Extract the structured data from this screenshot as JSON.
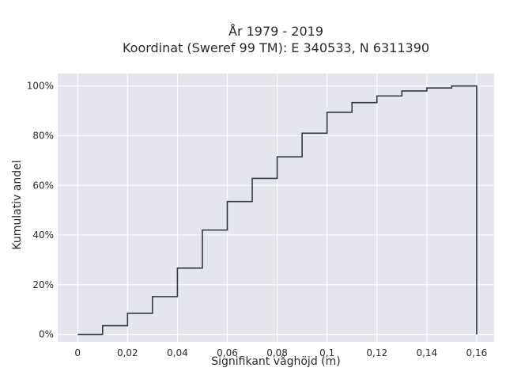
{
  "chart_data": {
    "type": "line",
    "line_shape": "step",
    "title_line1": "År 1979 - 2019",
    "title_line2": "Koordinat (Sweref 99 TM): E 340533, N 6311390",
    "xlabel": "Signifikant våghöjd (m)",
    "ylabel": "Kumulativ andel",
    "xlim": [
      -0.008,
      0.167
    ],
    "ylim": [
      -3,
      105
    ],
    "x_ticks": [
      0,
      0.02,
      0.04,
      0.06,
      0.08,
      0.1,
      0.12,
      0.14,
      0.16
    ],
    "x_tick_labels": [
      "0",
      "0,02",
      "0,04",
      "0,06",
      "0,08",
      "0,1",
      "0,12",
      "0,14",
      "0,16"
    ],
    "y_ticks": [
      0,
      20,
      40,
      60,
      80,
      100
    ],
    "y_tick_labels": [
      "0%",
      "20%",
      "40%",
      "60%",
      "80%",
      "100%"
    ],
    "grid": true,
    "background_color": "#e5e5ee",
    "line_color": "#2f3a4a",
    "series": [
      {
        "x": [
          0,
          0.01,
          0.02,
          0.03,
          0.04,
          0.05,
          0.06,
          0.07,
          0.08,
          0.09,
          0.1,
          0.11,
          0.12,
          0.13,
          0.14,
          0.15,
          0.16
        ],
        "values": [
          0,
          3.5,
          8.5,
          15.2,
          26.7,
          42,
          53.5,
          62.8,
          71.5,
          81,
          89.4,
          93.3,
          96,
          98,
          99.2,
          100,
          0
        ]
      }
    ]
  }
}
